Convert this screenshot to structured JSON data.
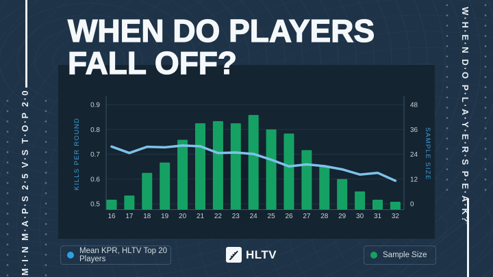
{
  "page": {
    "bg_color": "#1e3347",
    "panel_color": "#142431"
  },
  "header": {
    "title_line1": "WHEN DO PLAYERS",
    "title_line2": "FALL OFF?"
  },
  "sidebar_left": {
    "text": "M·I·N  M·A·P·S  2·5  V·S  T·O·P  2·0"
  },
  "sidebar_right": {
    "text": "W·H·E·N  D·O  P·L·A·Y·E·R·S  P·E·A·K?"
  },
  "legend": {
    "kpr_label": "Mean KPR, HLTV Top 20 Players",
    "sample_label": "Sample Size",
    "kpr_dot_color": "#2aa2e2",
    "sample_dot_color": "#16a164"
  },
  "logo": {
    "text": "HLTV"
  },
  "chart_data": {
    "type": "bar+line combo",
    "categories": [
      16,
      17,
      18,
      19,
      20,
      21,
      22,
      23,
      24,
      25,
      26,
      27,
      28,
      29,
      30,
      31,
      32
    ],
    "series": [
      {
        "name": "Mean KPR, HLTV Top 20 Players",
        "type": "line",
        "axis": "left",
        "color": "#7ec3e9",
        "values": [
          0.731,
          0.705,
          0.73,
          0.728,
          0.735,
          0.732,
          0.705,
          0.707,
          0.701,
          0.678,
          0.651,
          0.659,
          0.652,
          0.639,
          0.618,
          0.625,
          0.593
        ]
      },
      {
        "name": "Sample Size",
        "type": "bar",
        "axis": "right",
        "color": "#16a164",
        "values": [
          2,
          4,
          15,
          20,
          31,
          39,
          40,
          39,
          43,
          36,
          34,
          26,
          18,
          12,
          6,
          2,
          1
        ]
      }
    ],
    "left_axis": {
      "label": "KILLS PER ROUND",
      "min": 0.5,
      "max": 0.9,
      "ticks": [
        0.5,
        0.6,
        0.7,
        0.8,
        0.9
      ]
    },
    "right_axis": {
      "label": "SAMPLE SIZE",
      "min": 0,
      "max": 48,
      "ticks": [
        0,
        12,
        24,
        36,
        48
      ]
    },
    "xlabel": "",
    "grid": true,
    "tick_color": "#c9d1d8",
    "axis_title_color": "#3f9ed8",
    "axis_line_color": "#3d5468"
  }
}
